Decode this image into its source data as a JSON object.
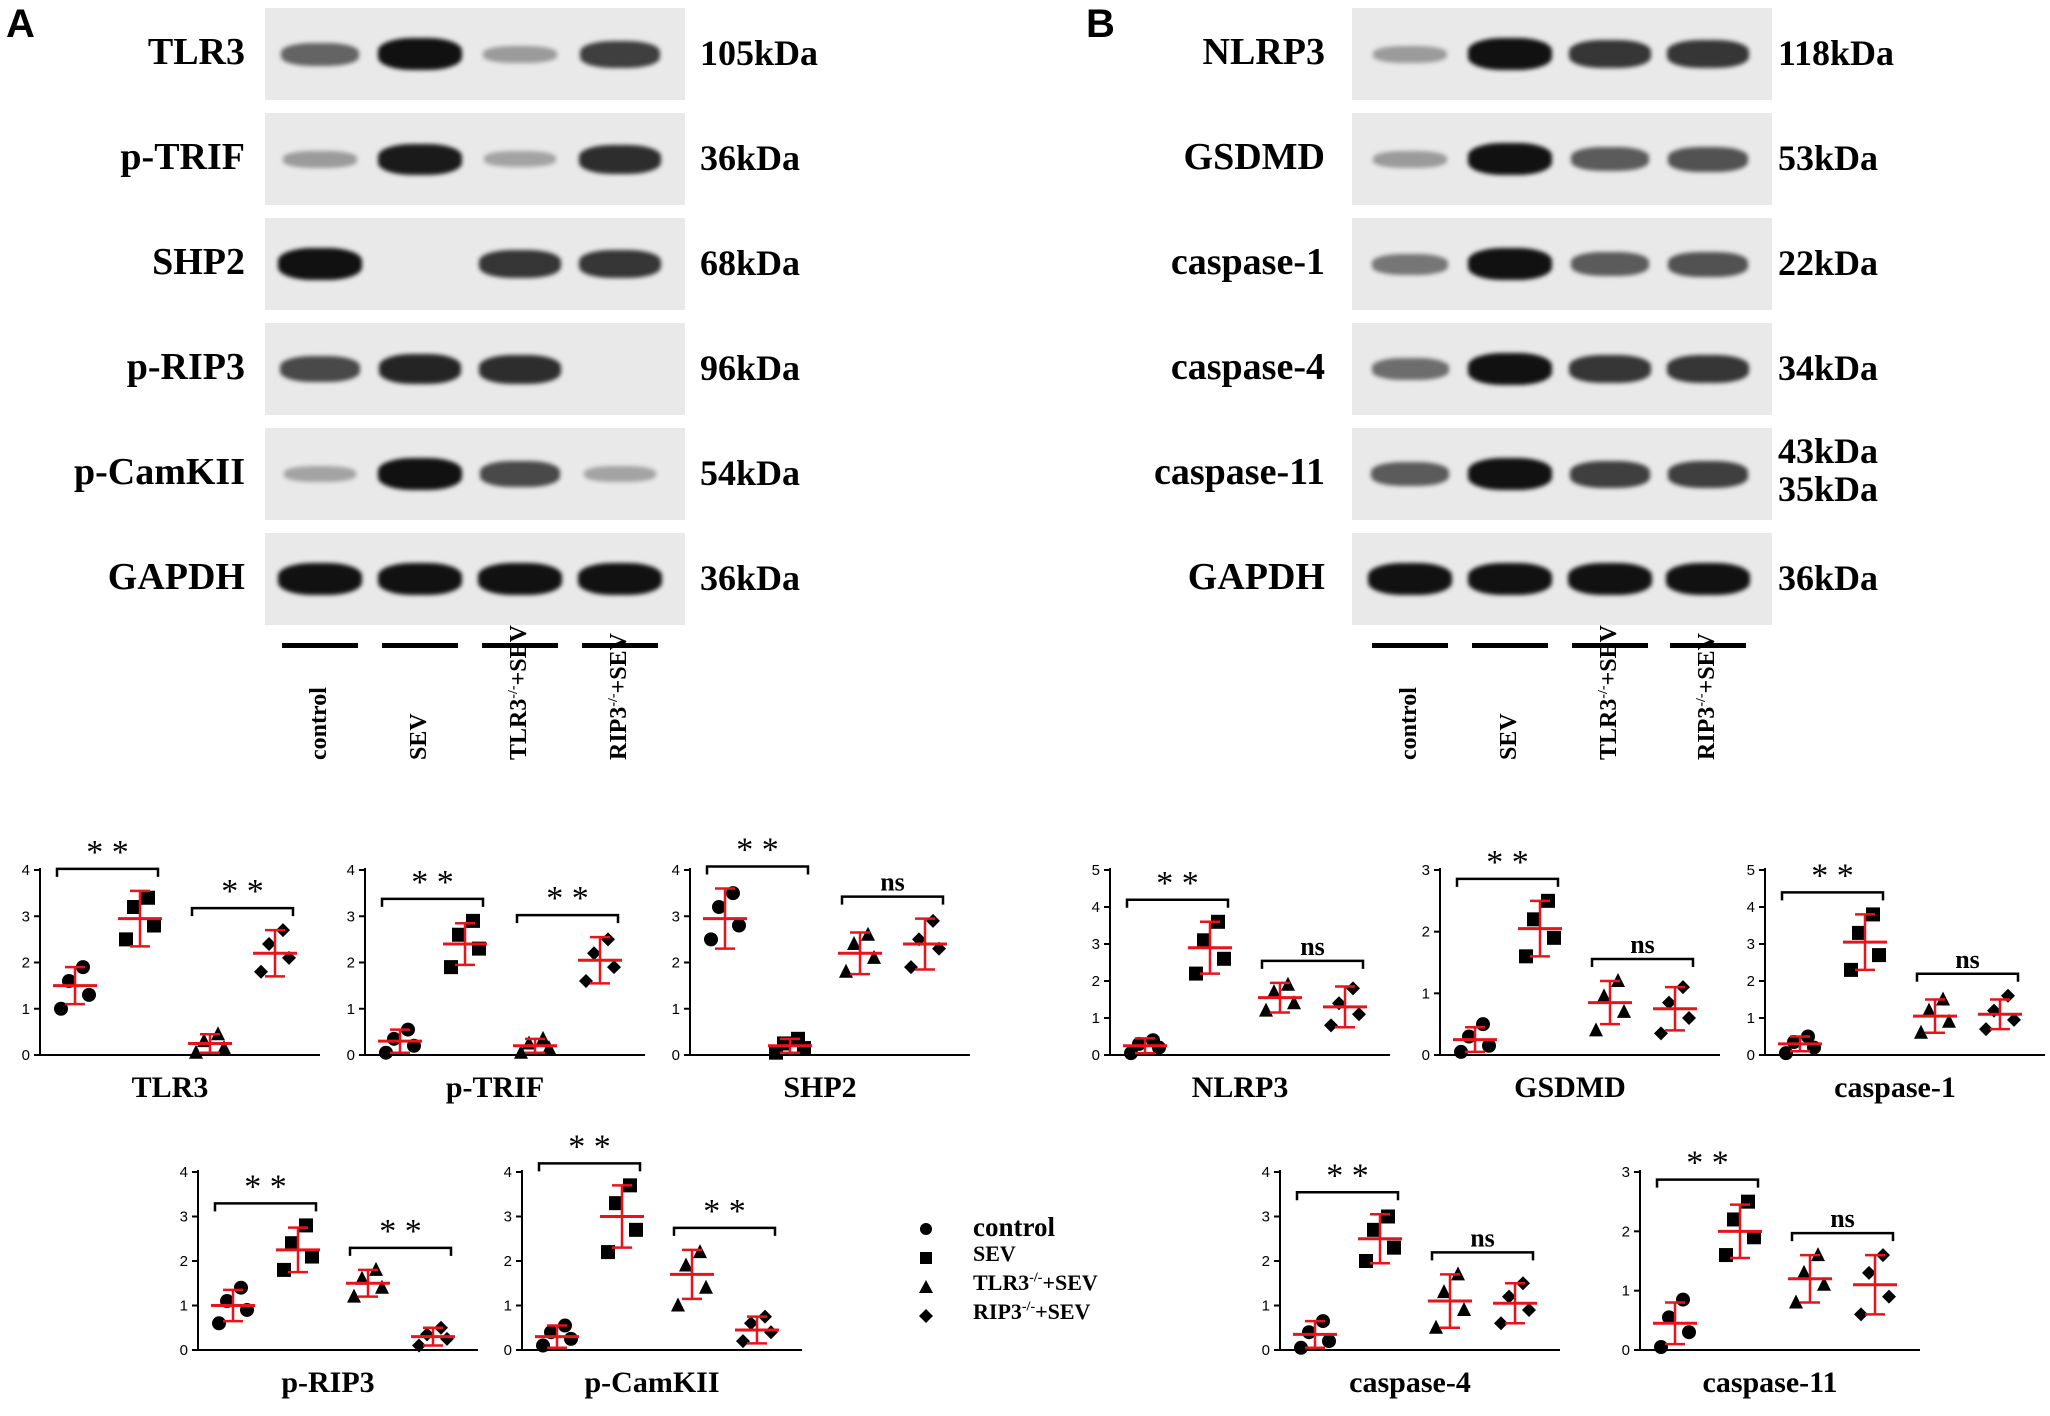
{
  "panels": {
    "a": "A",
    "b": "B"
  },
  "blots_a": {
    "rows": [
      {
        "label": "TLR3",
        "kda": "105kDa",
        "lanes": [
          0.55,
          1.0,
          0.25,
          0.75
        ]
      },
      {
        "label": "p-TRIF",
        "kda": "36kDa",
        "lanes": [
          0.25,
          0.95,
          0.2,
          0.85
        ]
      },
      {
        "label": "SHP2",
        "kda": "68kDa",
        "lanes": [
          1.0,
          0.0,
          0.8,
          0.8
        ]
      },
      {
        "label": "p-RIP3",
        "kda": "96kDa",
        "lanes": [
          0.7,
          0.9,
          0.85,
          0.0
        ]
      },
      {
        "label": "p-CamKII",
        "kda": "54kDa",
        "lanes": [
          0.2,
          1.0,
          0.7,
          0.2
        ]
      },
      {
        "label": "GAPDH",
        "kda": "36kDa",
        "lanes": [
          1.0,
          1.0,
          1.0,
          1.0
        ]
      }
    ],
    "lanes": [
      {
        "main": "control",
        "sup": ""
      },
      {
        "main": "SEV",
        "sup": ""
      },
      {
        "main": "TLR3",
        "sup": "-/-",
        "rest": "+SEV"
      },
      {
        "main": "RIP3",
        "sup": "-/-",
        "rest": "+SEV"
      }
    ]
  },
  "blots_b": {
    "rows": [
      {
        "label": "NLRP3",
        "kda": "118kDa",
        "lanes": [
          0.25,
          1.0,
          0.8,
          0.8
        ]
      },
      {
        "label": "GSDMD",
        "kda": "53kDa",
        "lanes": [
          0.25,
          1.0,
          0.6,
          0.65
        ]
      },
      {
        "label": "caspase-1",
        "kda": "22kDa",
        "lanes": [
          0.45,
          1.0,
          0.6,
          0.65
        ]
      },
      {
        "label": "caspase-4",
        "kda": "34kDa",
        "lanes": [
          0.5,
          1.0,
          0.8,
          0.8
        ]
      },
      {
        "label": "caspase-11",
        "kda": "43kDa",
        "kda2": "35kDa",
        "lanes": [
          0.6,
          1.0,
          0.75,
          0.75
        ]
      },
      {
        "label": "GAPDH",
        "kda": "36kDa",
        "lanes": [
          1.0,
          1.0,
          1.0,
          1.0
        ]
      }
    ],
    "lanes": [
      {
        "main": "control",
        "sup": ""
      },
      {
        "main": "SEV",
        "sup": ""
      },
      {
        "main": "TLR3",
        "sup": "-/-",
        "rest": "+SEV"
      },
      {
        "main": "RIP3",
        "sup": "-/-",
        "rest": "+SEV"
      }
    ]
  },
  "legend": {
    "items": [
      {
        "marker": "circle",
        "label": "control"
      },
      {
        "marker": "square",
        "label": "SEV"
      },
      {
        "marker": "triangle",
        "label": "TLR3",
        "sup": "-/-",
        "rest": "+SEV"
      },
      {
        "marker": "diamond",
        "label": "RIP3",
        "sup": "-/-",
        "rest": "+SEV"
      }
    ]
  },
  "colors": {
    "mean_bar": "#e8141c",
    "points": "#000000",
    "blot_bg": "#e9e9e9",
    "band": "#111111"
  },
  "chart_data": [
    {
      "type": "scatter",
      "xlabel": "TLR3",
      "ylim": [
        0,
        4
      ],
      "yticks": [
        0,
        1,
        2,
        3,
        4
      ],
      "groups": [
        {
          "points": [
            1.0,
            1.3,
            1.6,
            1.9
          ],
          "mean": 1.5,
          "sd": 0.4
        },
        {
          "points": [
            2.5,
            2.8,
            3.2,
            3.4
          ],
          "mean": 2.95,
          "sd": 0.6
        },
        {
          "points": [
            0.05,
            0.15,
            0.3,
            0.45
          ],
          "mean": 0.25,
          "sd": 0.2
        },
        {
          "points": [
            1.8,
            2.1,
            2.4,
            2.7
          ],
          "mean": 2.2,
          "sd": 0.5
        }
      ],
      "comparisons": [
        {
          "from": 0,
          "to": 1,
          "label": "**"
        },
        {
          "from": 2,
          "to": 3,
          "label": "**"
        }
      ]
    },
    {
      "type": "scatter",
      "xlabel": "p-TRIF",
      "ylim": [
        0,
        4
      ],
      "yticks": [
        0,
        1,
        2,
        3,
        4
      ],
      "groups": [
        {
          "points": [
            0.05,
            0.2,
            0.35,
            0.55
          ],
          "mean": 0.3,
          "sd": 0.25
        },
        {
          "points": [
            1.9,
            2.3,
            2.6,
            2.9
          ],
          "mean": 2.4,
          "sd": 0.45
        },
        {
          "points": [
            0.05,
            0.15,
            0.25,
            0.35
          ],
          "mean": 0.2,
          "sd": 0.15
        },
        {
          "points": [
            1.6,
            1.9,
            2.2,
            2.5
          ],
          "mean": 2.05,
          "sd": 0.5
        }
      ],
      "comparisons": [
        {
          "from": 0,
          "to": 1,
          "label": "**"
        },
        {
          "from": 2,
          "to": 3,
          "label": "**"
        }
      ]
    },
    {
      "type": "scatter",
      "xlabel": "SHP2",
      "ylim": [
        0,
        4
      ],
      "yticks": [
        0,
        1,
        2,
        3,
        4
      ],
      "groups": [
        {
          "points": [
            2.5,
            2.8,
            3.2,
            3.5
          ],
          "mean": 2.95,
          "sd": 0.65
        },
        {
          "points": [
            0.05,
            0.15,
            0.25,
            0.35
          ],
          "mean": 0.2,
          "sd": 0.15
        },
        {
          "points": [
            1.8,
            2.1,
            2.4,
            2.6
          ],
          "mean": 2.2,
          "sd": 0.45
        },
        {
          "points": [
            1.9,
            2.3,
            2.5,
            2.9
          ],
          "mean": 2.4,
          "sd": 0.55
        }
      ],
      "comparisons": [
        {
          "from": 0,
          "to": 1,
          "label": "**"
        },
        {
          "from": 2,
          "to": 3,
          "label": "ns"
        }
      ]
    },
    {
      "type": "scatter",
      "xlabel": "NLRP3",
      "ylim": [
        0,
        5
      ],
      "yticks": [
        0,
        1,
        2,
        3,
        4,
        5
      ],
      "groups": [
        {
          "points": [
            0.05,
            0.2,
            0.3,
            0.4
          ],
          "mean": 0.25,
          "sd": 0.2
        },
        {
          "points": [
            2.2,
            2.6,
            3.1,
            3.6
          ],
          "mean": 2.9,
          "sd": 0.7
        },
        {
          "points": [
            1.2,
            1.4,
            1.7,
            1.9
          ],
          "mean": 1.55,
          "sd": 0.4
        },
        {
          "points": [
            0.8,
            1.1,
            1.4,
            1.8
          ],
          "mean": 1.3,
          "sd": 0.55
        }
      ],
      "comparisons": [
        {
          "from": 0,
          "to": 1,
          "label": "**"
        },
        {
          "from": 2,
          "to": 3,
          "label": "ns"
        }
      ]
    },
    {
      "type": "scatter",
      "xlabel": "GSDMD",
      "ylim": [
        0,
        3
      ],
      "yticks": [
        0,
        1,
        2,
        3
      ],
      "groups": [
        {
          "points": [
            0.05,
            0.15,
            0.3,
            0.5
          ],
          "mean": 0.25,
          "sd": 0.2
        },
        {
          "points": [
            1.6,
            1.9,
            2.2,
            2.5
          ],
          "mean": 2.05,
          "sd": 0.45
        },
        {
          "points": [
            0.4,
            0.7,
            0.95,
            1.2
          ],
          "mean": 0.85,
          "sd": 0.35
        },
        {
          "points": [
            0.35,
            0.6,
            0.85,
            1.1
          ],
          "mean": 0.75,
          "sd": 0.35
        }
      ],
      "comparisons": [
        {
          "from": 0,
          "to": 1,
          "label": "**"
        },
        {
          "from": 2,
          "to": 3,
          "label": "ns"
        }
      ]
    },
    {
      "type": "scatter",
      "xlabel": "caspase-1",
      "ylim": [
        0,
        5
      ],
      "yticks": [
        0,
        1,
        2,
        3,
        4,
        5
      ],
      "groups": [
        {
          "points": [
            0.05,
            0.2,
            0.35,
            0.5
          ],
          "mean": 0.3,
          "sd": 0.2
        },
        {
          "points": [
            2.3,
            2.7,
            3.3,
            3.8
          ],
          "mean": 3.05,
          "sd": 0.75
        },
        {
          "points": [
            0.6,
            0.9,
            1.2,
            1.5
          ],
          "mean": 1.05,
          "sd": 0.45
        },
        {
          "points": [
            0.7,
            0.95,
            1.2,
            1.6
          ],
          "mean": 1.1,
          "sd": 0.4
        }
      ],
      "comparisons": [
        {
          "from": 0,
          "to": 1,
          "label": "**"
        },
        {
          "from": 2,
          "to": 3,
          "label": "ns"
        }
      ]
    },
    {
      "type": "scatter",
      "xlabel": "p-RIP3",
      "ylim": [
        0,
        4
      ],
      "yticks": [
        0,
        1,
        2,
        3,
        4
      ],
      "groups": [
        {
          "points": [
            0.6,
            0.9,
            1.1,
            1.4
          ],
          "mean": 1.0,
          "sd": 0.35
        },
        {
          "points": [
            1.8,
            2.1,
            2.4,
            2.8
          ],
          "mean": 2.25,
          "sd": 0.5
        },
        {
          "points": [
            1.2,
            1.4,
            1.6,
            1.8
          ],
          "mean": 1.5,
          "sd": 0.3
        },
        {
          "points": [
            0.1,
            0.25,
            0.35,
            0.5
          ],
          "mean": 0.3,
          "sd": 0.2
        }
      ],
      "comparisons": [
        {
          "from": 0,
          "to": 1,
          "label": "**"
        },
        {
          "from": 2,
          "to": 3,
          "label": "**"
        }
      ]
    },
    {
      "type": "scatter",
      "xlabel": "p-CamKII",
      "ylim": [
        0,
        4
      ],
      "yticks": [
        0,
        1,
        2,
        3,
        4
      ],
      "groups": [
        {
          "points": [
            0.1,
            0.25,
            0.4,
            0.55
          ],
          "mean": 0.3,
          "sd": 0.25
        },
        {
          "points": [
            2.2,
            2.7,
            3.3,
            3.7
          ],
          "mean": 3.0,
          "sd": 0.7
        },
        {
          "points": [
            1.0,
            1.4,
            1.9,
            2.2
          ],
          "mean": 1.7,
          "sd": 0.55
        },
        {
          "points": [
            0.2,
            0.4,
            0.6,
            0.75
          ],
          "mean": 0.45,
          "sd": 0.3
        }
      ],
      "comparisons": [
        {
          "from": 0,
          "to": 1,
          "label": "**"
        },
        {
          "from": 2,
          "to": 3,
          "label": "**"
        }
      ]
    },
    {
      "type": "scatter",
      "xlabel": "caspase-4",
      "ylim": [
        0,
        4
      ],
      "yticks": [
        0,
        1,
        2,
        3,
        4
      ],
      "groups": [
        {
          "points": [
            0.05,
            0.2,
            0.4,
            0.65
          ],
          "mean": 0.35,
          "sd": 0.3
        },
        {
          "points": [
            2.0,
            2.3,
            2.7,
            3.0
          ],
          "mean": 2.5,
          "sd": 0.55
        },
        {
          "points": [
            0.5,
            0.9,
            1.3,
            1.7
          ],
          "mean": 1.1,
          "sd": 0.6
        },
        {
          "points": [
            0.6,
            0.9,
            1.2,
            1.5
          ],
          "mean": 1.05,
          "sd": 0.45
        }
      ],
      "comparisons": [
        {
          "from": 0,
          "to": 1,
          "label": "**"
        },
        {
          "from": 2,
          "to": 3,
          "label": "ns"
        }
      ]
    },
    {
      "type": "scatter",
      "xlabel": "caspase-11",
      "ylim": [
        0,
        3
      ],
      "yticks": [
        0,
        1,
        2,
        3
      ],
      "groups": [
        {
          "points": [
            0.05,
            0.3,
            0.55,
            0.85
          ],
          "mean": 0.45,
          "sd": 0.35
        },
        {
          "points": [
            1.6,
            1.9,
            2.2,
            2.5
          ],
          "mean": 2.0,
          "sd": 0.45
        },
        {
          "points": [
            0.8,
            1.1,
            1.3,
            1.6
          ],
          "mean": 1.2,
          "sd": 0.4
        },
        {
          "points": [
            0.6,
            0.9,
            1.3,
            1.6
          ],
          "mean": 1.1,
          "sd": 0.5
        }
      ],
      "comparisons": [
        {
          "from": 0,
          "to": 1,
          "label": "**"
        },
        {
          "from": 2,
          "to": 3,
          "label": "ns"
        }
      ]
    }
  ]
}
